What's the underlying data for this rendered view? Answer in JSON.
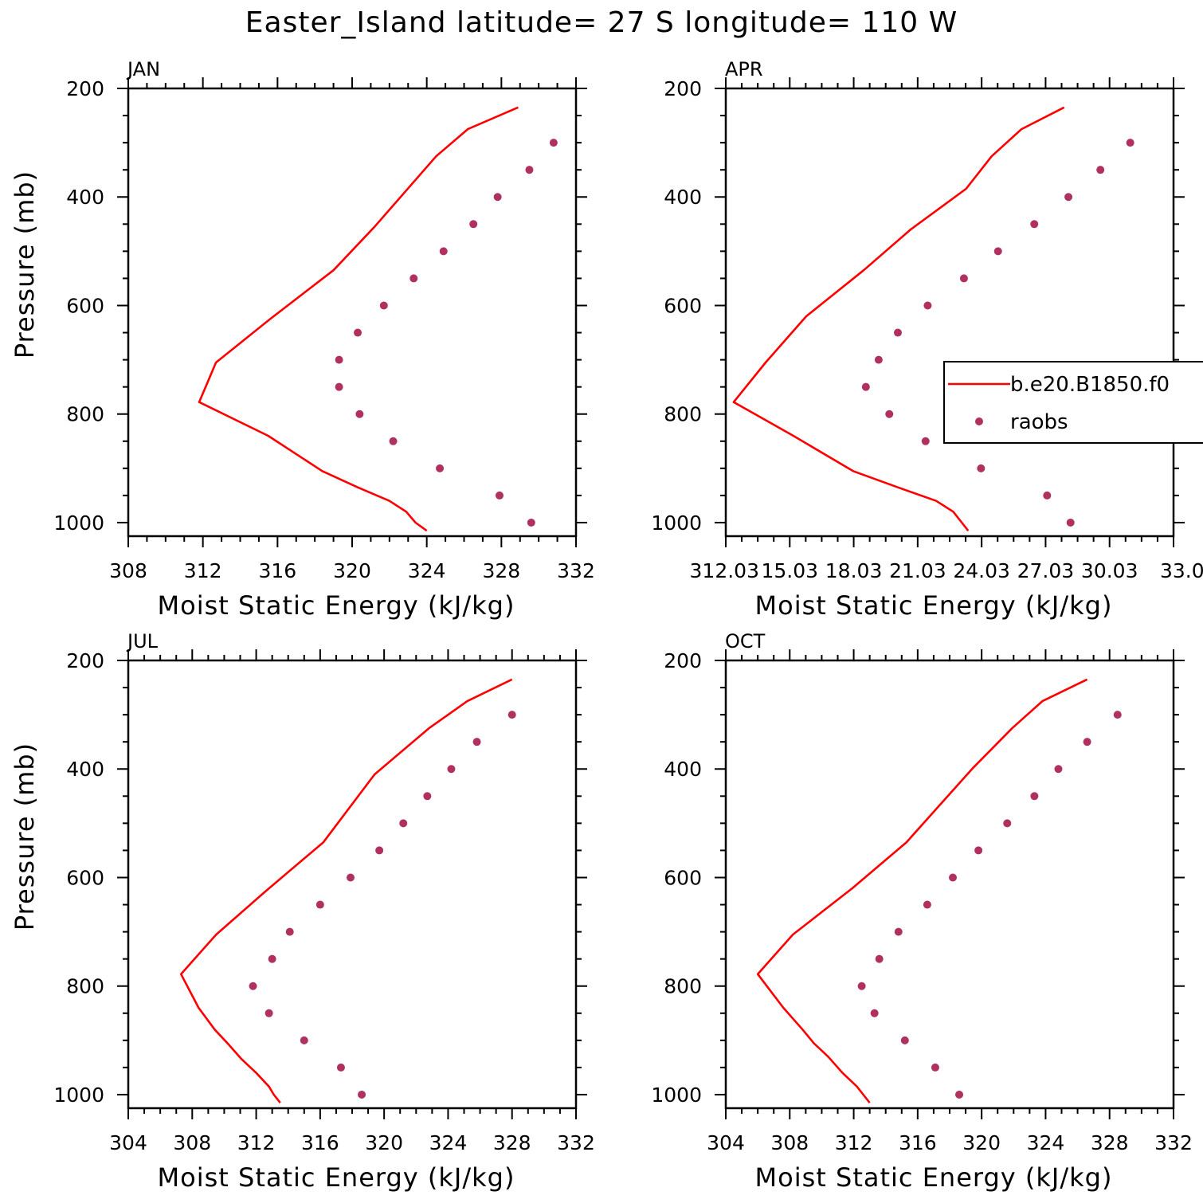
{
  "title": "Easter_Island  latitude= 27 S longitude= 110 W",
  "colors": {
    "model": "#ff0000",
    "obs": "#b03060",
    "axis": "#000000"
  },
  "legend": {
    "model_label": "b.e20.B1850.f0",
    "obs_label": "raobs"
  },
  "chart_data": [
    {
      "type": "line",
      "panel": "JAN",
      "xlabel": "Moist Static Energy (kJ/kg)",
      "ylabel": "Pressure (mb)",
      "xlim": [
        308,
        332
      ],
      "ylim": [
        200,
        1025
      ],
      "y_inverted": true,
      "xticks": [
        "308",
        "312",
        "316",
        "320",
        "324",
        "328",
        "332"
      ],
      "yticks": [
        "200",
        "400",
        "600",
        "800",
        "1000"
      ],
      "series": [
        {
          "name": "b.e20.B1850.f0",
          "kind": "line",
          "x": [
            328.9,
            326.2,
            324.5,
            321.2,
            319.0,
            315.6,
            312.7,
            311.8,
            315.5,
            318.4,
            320.3,
            322.0,
            322.9,
            323.4,
            324.0
          ],
          "y": [
            235,
            275,
            325,
            455,
            535,
            625,
            705,
            778,
            840,
            905,
            935,
            960,
            980,
            1000,
            1015
          ]
        },
        {
          "name": "raobs",
          "kind": "scatter",
          "x": [
            330.8,
            329.5,
            327.8,
            326.5,
            324.9,
            323.3,
            321.7,
            320.3,
            319.3,
            319.3,
            320.4,
            322.2,
            324.7,
            327.9,
            329.6
          ],
          "y": [
            300,
            350,
            400,
            450,
            500,
            550,
            600,
            650,
            700,
            750,
            800,
            850,
            900,
            950,
            1000
          ]
        }
      ]
    },
    {
      "type": "line",
      "panel": "APR",
      "xlabel": "Moist Static Energy (kJ/kg)",
      "ylabel": "",
      "xlim": [
        312.03,
        333.03
      ],
      "ylim": [
        200,
        1025
      ],
      "y_inverted": true,
      "xticks": [
        "312.03",
        "15.03",
        "18.03",
        "21.03",
        "24.03",
        "27.03",
        "30.03",
        "33.0"
      ],
      "yticks": [
        "200",
        "400",
        "600",
        "800",
        "1000"
      ],
      "legend_position": "right",
      "series": [
        {
          "name": "b.e20.B1850.f0",
          "kind": "line",
          "x": [
            327.9,
            325.9,
            324.5,
            323.3,
            320.7,
            318.5,
            315.8,
            313.9,
            312.4,
            315.2,
            318.0,
            320.1,
            321.9,
            322.7,
            323.1,
            323.4
          ],
          "y": [
            235,
            275,
            325,
            385,
            460,
            535,
            620,
            705,
            778,
            840,
            905,
            935,
            960,
            980,
            1000,
            1015
          ]
        },
        {
          "name": "raobs",
          "kind": "scatter",
          "x": [
            331.0,
            329.6,
            328.1,
            326.5,
            324.8,
            323.2,
            321.5,
            320.1,
            319.2,
            318.6,
            319.7,
            321.4,
            324.0,
            327.1,
            328.2
          ],
          "y": [
            300,
            350,
            400,
            450,
            500,
            550,
            600,
            650,
            700,
            750,
            800,
            850,
            900,
            950,
            1000
          ]
        }
      ]
    },
    {
      "type": "line",
      "panel": "JUL",
      "xlabel": "Moist Static Energy (kJ/kg)",
      "ylabel": "Pressure (mb)",
      "xlim": [
        304,
        332
      ],
      "ylim": [
        200,
        1025
      ],
      "y_inverted": true,
      "xticks": [
        "304",
        "308",
        "312",
        "316",
        "320",
        "324",
        "328",
        "332"
      ],
      "yticks": [
        "200",
        "400",
        "600",
        "800",
        "1000"
      ],
      "series": [
        {
          "name": "b.e20.B1850.f0",
          "kind": "line",
          "x": [
            328.0,
            325.2,
            322.8,
            319.4,
            316.2,
            312.6,
            309.5,
            307.3,
            308.4,
            309.4,
            310.2,
            311.1,
            312.0,
            312.8,
            313.1,
            313.5
          ],
          "y": [
            235,
            275,
            325,
            410,
            535,
            625,
            705,
            778,
            840,
            880,
            905,
            935,
            960,
            985,
            1000,
            1015
          ]
        },
        {
          "name": "raobs",
          "kind": "scatter",
          "x": [
            328.0,
            325.8,
            324.2,
            322.7,
            321.2,
            319.7,
            317.9,
            316.0,
            314.1,
            313.0,
            311.8,
            312.8,
            315.0,
            317.3,
            318.6
          ],
          "y": [
            300,
            350,
            400,
            450,
            500,
            550,
            600,
            650,
            700,
            750,
            800,
            850,
            900,
            950,
            1000
          ]
        }
      ]
    },
    {
      "type": "line",
      "panel": "OCT",
      "xlabel": "Moist Static Energy (kJ/kg)",
      "ylabel": "",
      "xlim": [
        304,
        332
      ],
      "ylim": [
        200,
        1025
      ],
      "y_inverted": true,
      "xticks": [
        "304",
        "308",
        "312",
        "316",
        "320",
        "324",
        "328",
        "332"
      ],
      "yticks": [
        "200",
        "400",
        "600",
        "800",
        "1000"
      ],
      "series": [
        {
          "name": "b.e20.B1850.f0",
          "kind": "line",
          "x": [
            326.6,
            323.8,
            321.9,
            319.4,
            315.3,
            311.9,
            308.2,
            306.0,
            307.6,
            308.8,
            309.5,
            310.4,
            311.3,
            312.2,
            312.6,
            313.0
          ],
          "y": [
            235,
            275,
            325,
            400,
            535,
            620,
            705,
            778,
            840,
            880,
            905,
            930,
            960,
            985,
            1000,
            1015
          ]
        },
        {
          "name": "raobs",
          "kind": "scatter",
          "x": [
            328.5,
            326.6,
            324.8,
            323.3,
            321.6,
            319.8,
            318.2,
            316.6,
            314.8,
            313.6,
            312.5,
            313.3,
            315.2,
            317.1,
            318.6
          ],
          "y": [
            300,
            350,
            400,
            450,
            500,
            550,
            600,
            650,
            700,
            750,
            800,
            850,
            900,
            950,
            1000
          ]
        }
      ]
    }
  ]
}
